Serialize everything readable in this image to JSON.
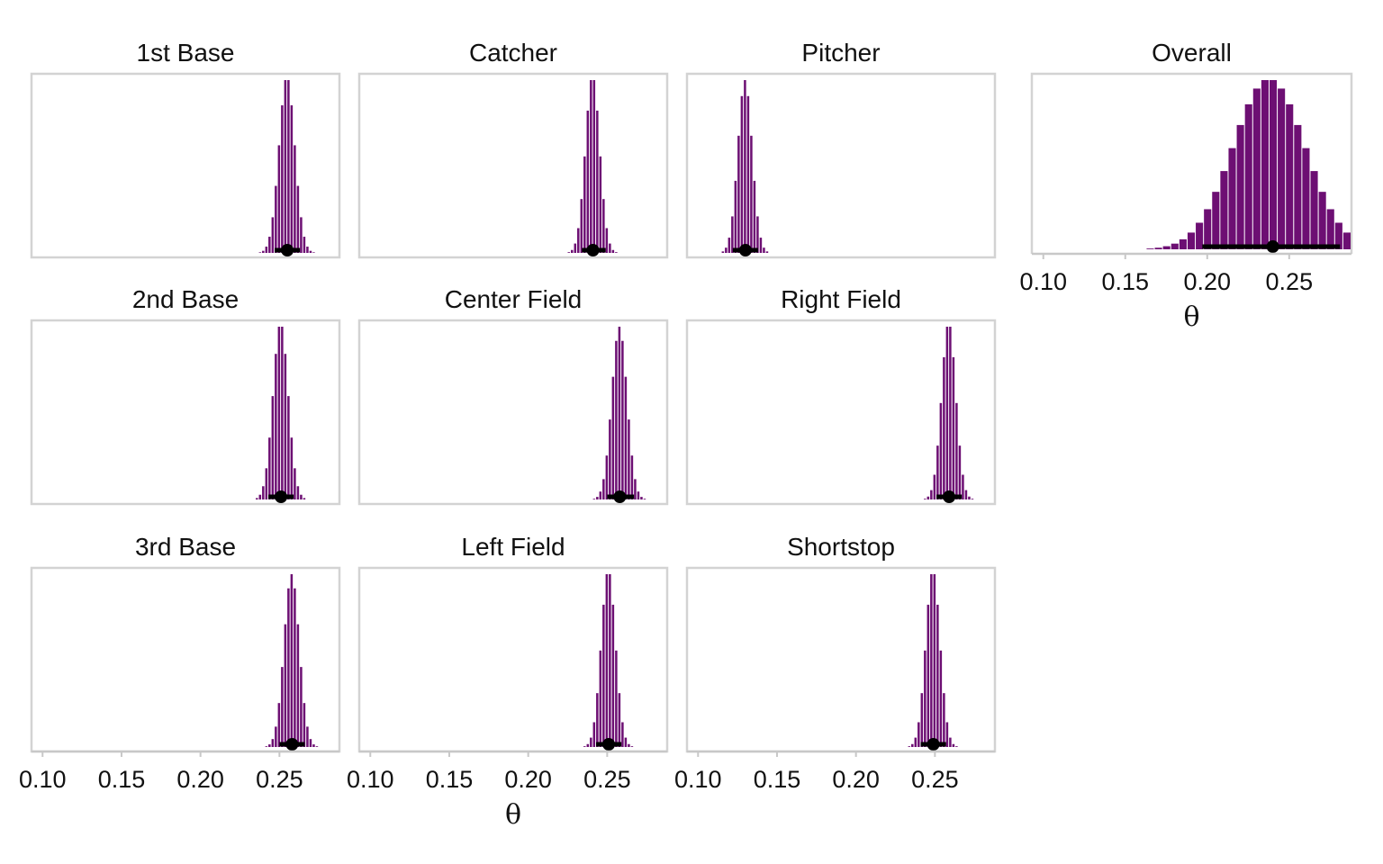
{
  "chart_data": {
    "type": "bar",
    "subtype": "histogram-facets",
    "bar_color": "#6d0f73",
    "interval_color": "#000000",
    "xlim": [
      0.093,
      0.288
    ],
    "xticks": [
      0.1,
      0.15,
      0.2,
      0.25
    ],
    "xtick_labels": [
      "0.10",
      "0.15",
      "0.20",
      "0.25"
    ],
    "xlabel": "θ",
    "panels": [
      {
        "title": "1st Base",
        "mean": 0.255,
        "sd": 0.005,
        "bin_width": 0.002,
        "interval": [
          0.247,
          0.263
        ],
        "point": 0.255
      },
      {
        "title": "Catcher",
        "mean": 0.241,
        "sd": 0.0045,
        "bin_width": 0.002,
        "interval": [
          0.234,
          0.249
        ],
        "point": 0.241
      },
      {
        "title": "Pitcher",
        "mean": 0.13,
        "sd": 0.0045,
        "bin_width": 0.002,
        "interval": [
          0.122,
          0.138
        ],
        "point": 0.13
      },
      {
        "title": "Overall",
        "mean": 0.238,
        "sd": 0.022,
        "bin_width": 0.005,
        "interval": [
          0.197,
          0.281
        ],
        "point": 0.24
      },
      {
        "title": "2nd Base",
        "mean": 0.251,
        "sd": 0.0048,
        "bin_width": 0.002,
        "interval": [
          0.243,
          0.259
        ],
        "point": 0.251
      },
      {
        "title": "Center Field",
        "mean": 0.258,
        "sd": 0.0048,
        "bin_width": 0.002,
        "interval": [
          0.25,
          0.267
        ],
        "point": 0.258
      },
      {
        "title": "Right Field",
        "mean": 0.259,
        "sd": 0.0045,
        "bin_width": 0.002,
        "interval": [
          0.251,
          0.267
        ],
        "point": 0.259
      },
      {
        "title": "3rd Base",
        "mean": 0.258,
        "sd": 0.0048,
        "bin_width": 0.002,
        "interval": [
          0.25,
          0.266
        ],
        "point": 0.258
      },
      {
        "title": "Left Field",
        "mean": 0.251,
        "sd": 0.0045,
        "bin_width": 0.002,
        "interval": [
          0.243,
          0.259
        ],
        "point": 0.251
      },
      {
        "title": "Shortstop",
        "mean": 0.249,
        "sd": 0.0045,
        "bin_width": 0.002,
        "interval": [
          0.241,
          0.257
        ],
        "point": 0.249
      }
    ]
  }
}
